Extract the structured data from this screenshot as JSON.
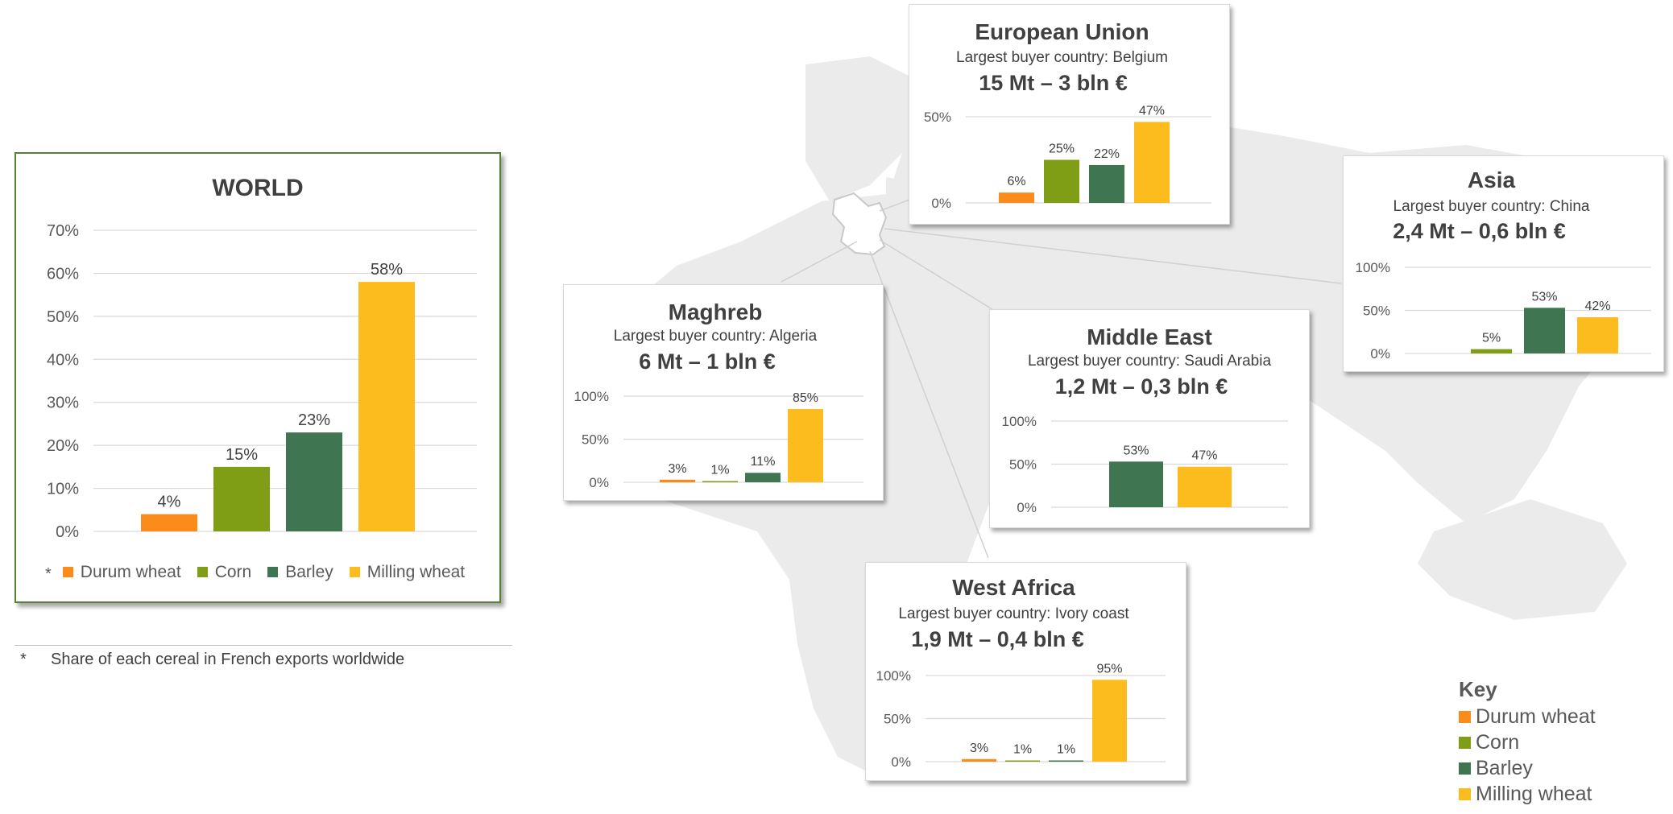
{
  "colors": {
    "durum": "#fb8c1b",
    "corn": "#7f9e16",
    "barley": "#3f7651",
    "milling": "#fcbc1d",
    "map": "#ebebeb",
    "world_border": "#548235"
  },
  "footnote": {
    "marker": "*",
    "text": "Share of each cereal in French exports worldwide"
  },
  "key": {
    "title": "Key",
    "items": [
      {
        "label": "Durum wheat",
        "color": "#fb8c1b"
      },
      {
        "label": "Corn",
        "color": "#7f9e16"
      },
      {
        "label": "Barley",
        "color": "#3f7651"
      },
      {
        "label": "Milling wheat",
        "color": "#fcbc1d"
      }
    ]
  },
  "chart_data": [
    {
      "id": "world",
      "type": "bar",
      "title": "WORLD",
      "legend_marker": "*",
      "categories": [
        "Durum wheat",
        "Corn",
        "Barley",
        "Milling wheat"
      ],
      "values": [
        4,
        15,
        23,
        58
      ],
      "labels": [
        "4%",
        "15%",
        "23%",
        "58%"
      ],
      "ylim": [
        0,
        70
      ],
      "yticks": [
        "0%",
        "10%",
        "20%",
        "30%",
        "40%",
        "50%",
        "60%",
        "70%"
      ],
      "legend": [
        "Durum wheat",
        "Corn",
        "Barley",
        "Milling wheat"
      ],
      "legend_position": "bottom",
      "grid": true
    },
    {
      "id": "eu",
      "type": "bar",
      "title": "European Union",
      "subtitle": "Largest buyer country: Belgium",
      "figures": "15 Mt – 3 bln €",
      "categories": [
        "Durum wheat",
        "Corn",
        "Barley",
        "Milling wheat"
      ],
      "values": [
        6,
        25,
        22,
        47
      ],
      "labels": [
        "6%",
        "25%",
        "22%",
        "47%"
      ],
      "ylim": [
        0,
        50
      ],
      "yticks": [
        "0%",
        "50%"
      ],
      "grid": true
    },
    {
      "id": "asia",
      "type": "bar",
      "title": "Asia",
      "subtitle": "Largest buyer country: China",
      "figures": "2,4 Mt – 0,6 bln €",
      "categories": [
        "Durum wheat",
        "Corn",
        "Barley",
        "Milling wheat"
      ],
      "values": [
        null,
        5,
        53,
        42
      ],
      "labels": [
        "",
        "5%",
        "53%",
        "42%"
      ],
      "ylim": [
        0,
        100
      ],
      "yticks": [
        "0%",
        "50%",
        "100%"
      ],
      "grid": true
    },
    {
      "id": "maghreb",
      "type": "bar",
      "title": "Maghreb",
      "subtitle": "Largest buyer country: Algeria",
      "figures": "6 Mt – 1 bln €",
      "categories": [
        "Durum wheat",
        "Corn",
        "Barley",
        "Milling wheat"
      ],
      "values": [
        3,
        1,
        11,
        85
      ],
      "labels": [
        "3%",
        "1%",
        "11%",
        "85%"
      ],
      "ylim": [
        0,
        100
      ],
      "yticks": [
        "0%",
        "50%",
        "100%"
      ],
      "grid": true
    },
    {
      "id": "middle-east",
      "type": "bar",
      "title": "Middle East",
      "subtitle": "Largest buyer country: Saudi Arabia",
      "figures": "1,2 Mt – 0,3 bln €",
      "categories": [
        "Durum wheat",
        "Corn",
        "Barley",
        "Milling wheat"
      ],
      "values": [
        null,
        null,
        53,
        47
      ],
      "labels": [
        "",
        "",
        "53%",
        "47%"
      ],
      "ylim": [
        0,
        100
      ],
      "yticks": [
        "0%",
        "50%",
        "100%"
      ],
      "grid": true
    },
    {
      "id": "west-africa",
      "type": "bar",
      "title": "West Africa",
      "subtitle": "Largest buyer country: Ivory coast",
      "figures": "1,9 Mt – 0,4 bln €",
      "categories": [
        "Durum wheat",
        "Corn",
        "Barley",
        "Milling wheat"
      ],
      "values": [
        3,
        1,
        1,
        95
      ],
      "labels": [
        "3%",
        "1%",
        "1%",
        "95%"
      ],
      "ylim": [
        0,
        100
      ],
      "yticks": [
        "0%",
        "50%",
        "100%"
      ],
      "grid": true
    }
  ]
}
